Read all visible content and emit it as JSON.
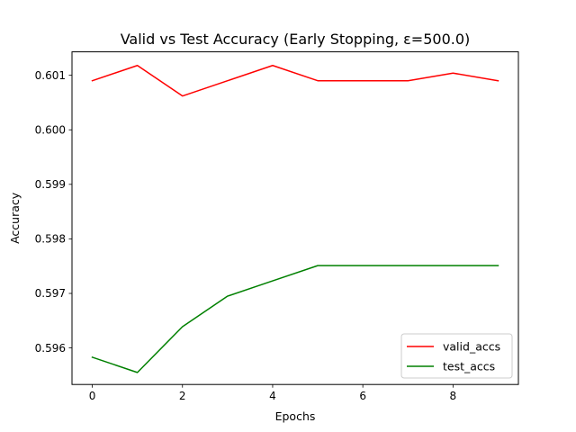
{
  "chart_data": {
    "type": "line",
    "title": "Valid vs Test Accuracy (Early Stopping, ε=500.0)",
    "xlabel": "Epochs",
    "ylabel": "Accuracy",
    "x": [
      0,
      1,
      2,
      3,
      4,
      5,
      6,
      7,
      8,
      9
    ],
    "xlim": [
      -0.45,
      9.45
    ],
    "ylim": [
      0.59533,
      0.60143
    ],
    "xticks": [
      0,
      2,
      4,
      6,
      8
    ],
    "xtick_labels": [
      "0",
      "2",
      "4",
      "6",
      "8"
    ],
    "yticks": [
      0.596,
      0.597,
      0.598,
      0.599,
      0.6,
      0.601
    ],
    "ytick_labels": [
      "0.596",
      "0.597",
      "0.598",
      "0.599",
      "0.600",
      "0.601"
    ],
    "grid": false,
    "legend_position": "lower-right",
    "series": [
      {
        "name": "valid_accs",
        "color": "#ff0000",
        "values": [
          0.6009,
          0.60118,
          0.60062,
          0.6009,
          0.60118,
          0.6009,
          0.6009,
          0.6009,
          0.60104,
          0.6009
        ]
      },
      {
        "name": "test_accs",
        "color": "#008000",
        "values": [
          0.59583,
          0.59555,
          0.59639,
          0.59695,
          0.59723,
          0.59751,
          0.59751,
          0.59751,
          0.59751,
          0.59751
        ]
      }
    ]
  }
}
